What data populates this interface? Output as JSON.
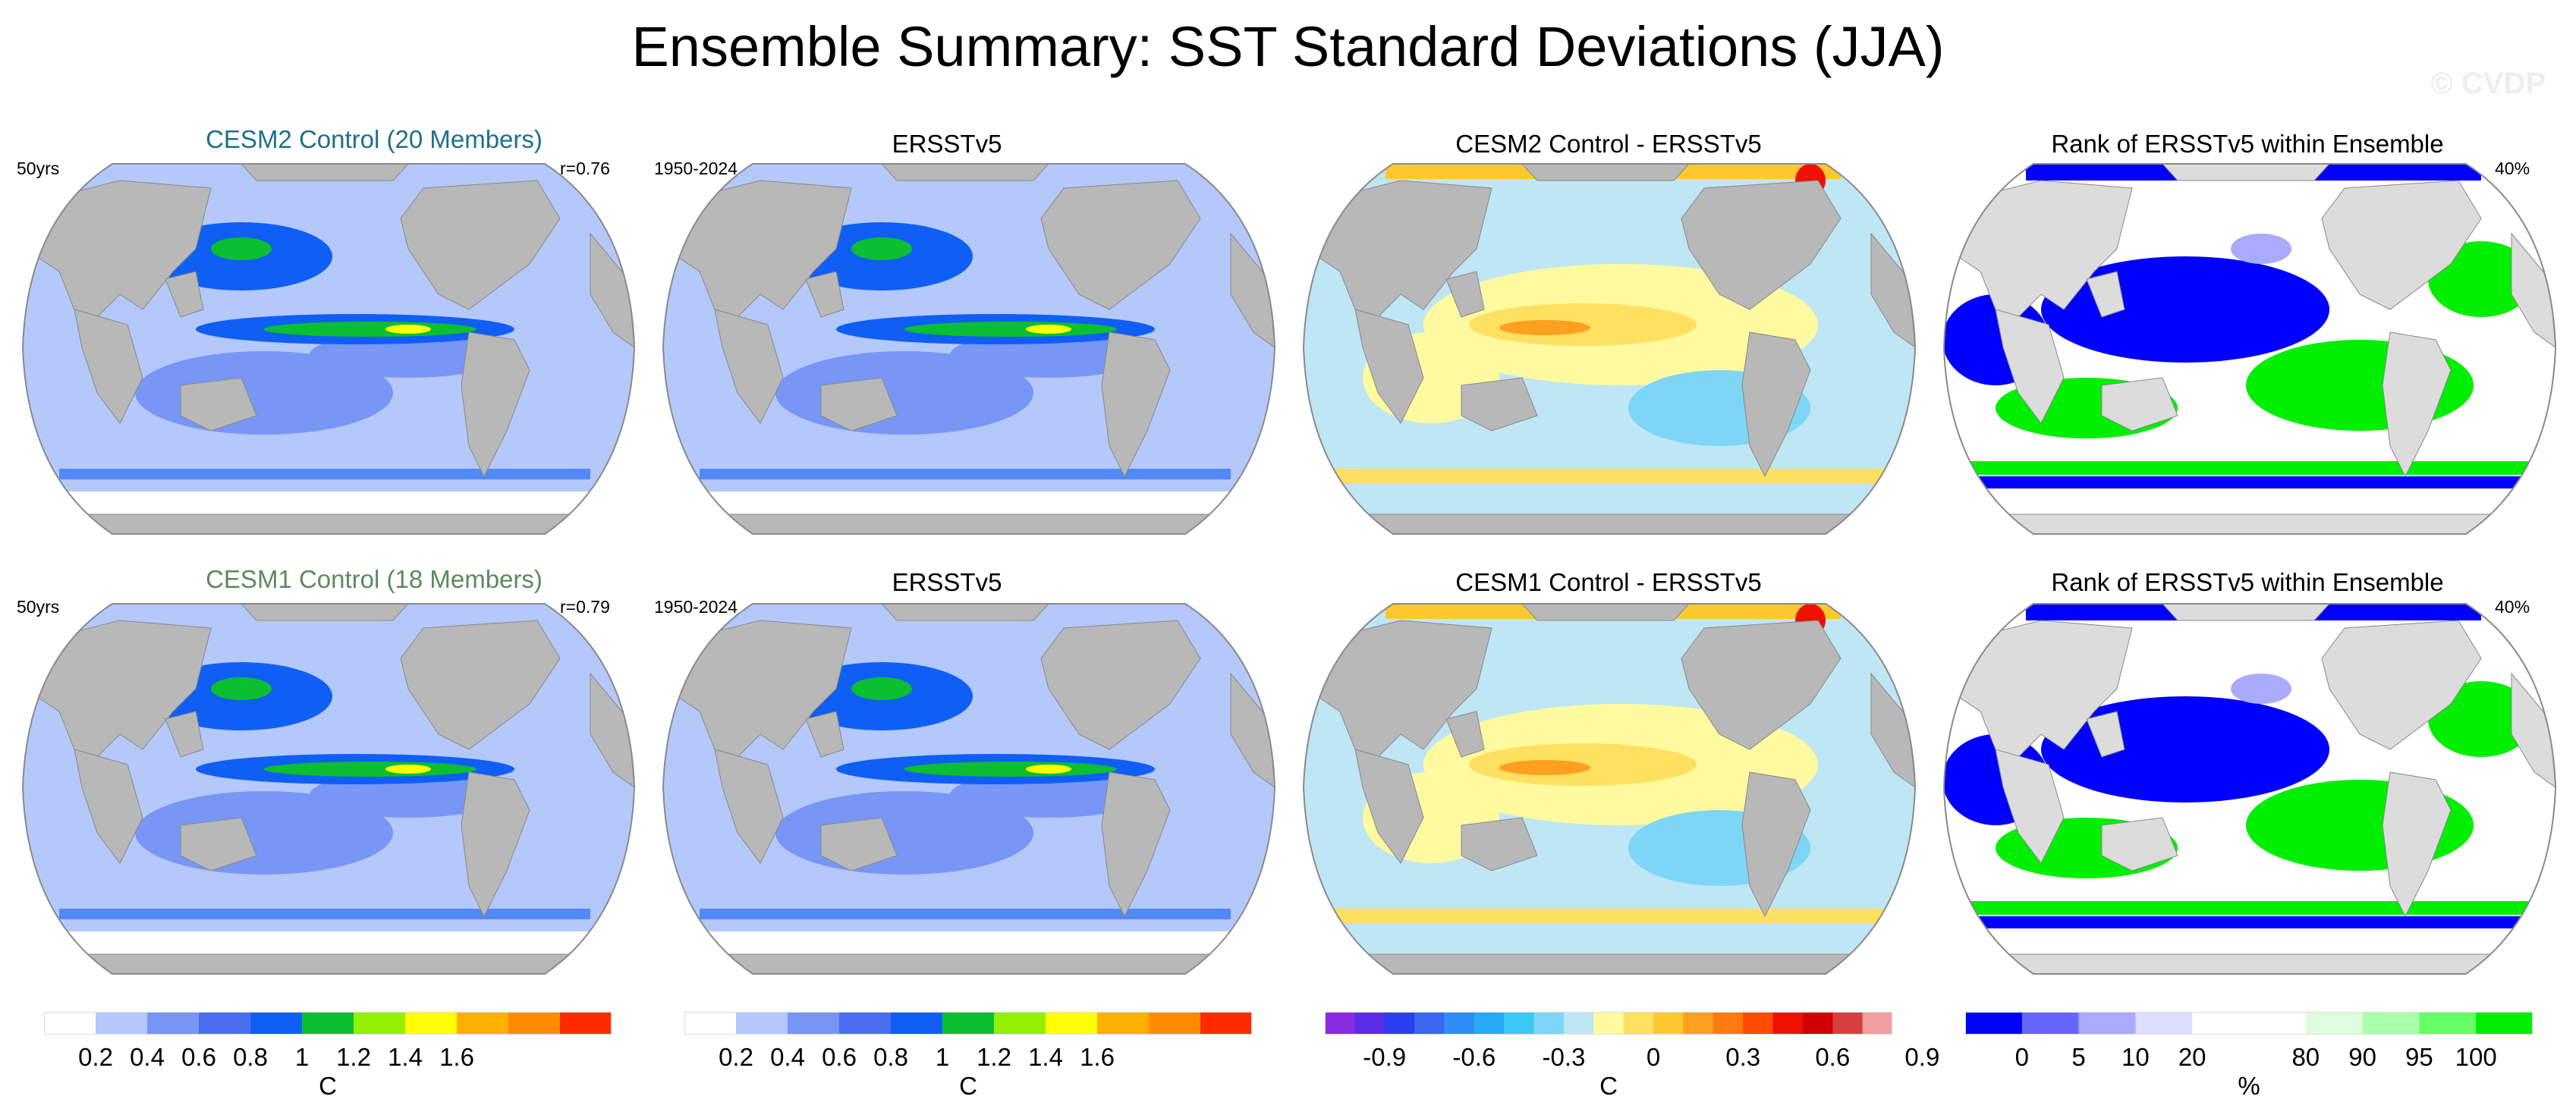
{
  "title": "Ensemble Summary: SST Standard Deviations (JJA)",
  "watermark": "© CVDP",
  "rows": [
    {
      "model_title": "CESM2 Control (20 Members)",
      "model_color": "#1f6f8b",
      "model_period": "50yrs",
      "pattern_corr": "r=0.76",
      "obs_title": "ERSSTv5",
      "obs_period": "1950-2024",
      "diff_title": "CESM2 Control - ERSSTv5",
      "rank_title": "Rank of ERSSTv5 within Ensemble",
      "rank_pct": "40%"
    },
    {
      "model_title": "CESM1 Control (18 Members)",
      "model_color": "#5c8a5c",
      "model_period": "50yrs",
      "pattern_corr": "r=0.79",
      "obs_title": "ERSSTv5",
      "obs_period": "1950-2024",
      "diff_title": "CESM1 Control - ERSSTv5",
      "rank_title": "Rank of ERSSTv5 within Ensemble",
      "rank_pct": "40%"
    }
  ],
  "colorbars": [
    {
      "units": "C",
      "colors": [
        "#ffffff",
        "#b4c8fa",
        "#7896f5",
        "#4a6ef0",
        "#0f5ff5",
        "#0bbf30",
        "#92f000",
        "#ffff00",
        "#ffb000",
        "#ff8c00",
        "#ff2a00"
      ],
      "ticks": [
        "0.2",
        "0.4",
        "0.6",
        "0.8",
        "1",
        "1.2",
        "1.4",
        "1.6"
      ]
    },
    {
      "units": "C",
      "colors": [
        "#ffffff",
        "#b4c8fa",
        "#7896f5",
        "#4a6ef0",
        "#0f5ff5",
        "#0bbf30",
        "#92f000",
        "#ffff00",
        "#ffb000",
        "#ff8c00",
        "#ff2a00"
      ],
      "ticks": [
        "0.2",
        "0.4",
        "0.6",
        "0.8",
        "1",
        "1.2",
        "1.4",
        "1.6"
      ]
    },
    {
      "units": "C",
      "colors": [
        "#8a2be2",
        "#5a2ee6",
        "#2b3df0",
        "#3a66f0",
        "#2f8cf5",
        "#26aaf5",
        "#3cc8f5",
        "#7dd6f5",
        "#bfe6f5",
        "#fffaa0",
        "#ffe060",
        "#ffc830",
        "#ffa020",
        "#ff7a10",
        "#ff4a00",
        "#f01000",
        "#d00000",
        "#d84040",
        "#f0a0a0"
      ],
      "ticks": [
        "-0.9",
        "-0.6",
        "-0.3",
        "0",
        "0.3",
        "0.6",
        "0.9"
      ]
    },
    {
      "units": "%",
      "colors": [
        "#0000ff",
        "#6666ff",
        "#aaaaff",
        "#ddddff",
        "#ffffff",
        "#ffffff",
        "#ddffdd",
        "#aaffaa",
        "#66ff66",
        "#00ee00"
      ],
      "ticks": [
        "0",
        "5",
        "10",
        "20",
        "80",
        "90",
        "95",
        "100"
      ]
    }
  ]
}
